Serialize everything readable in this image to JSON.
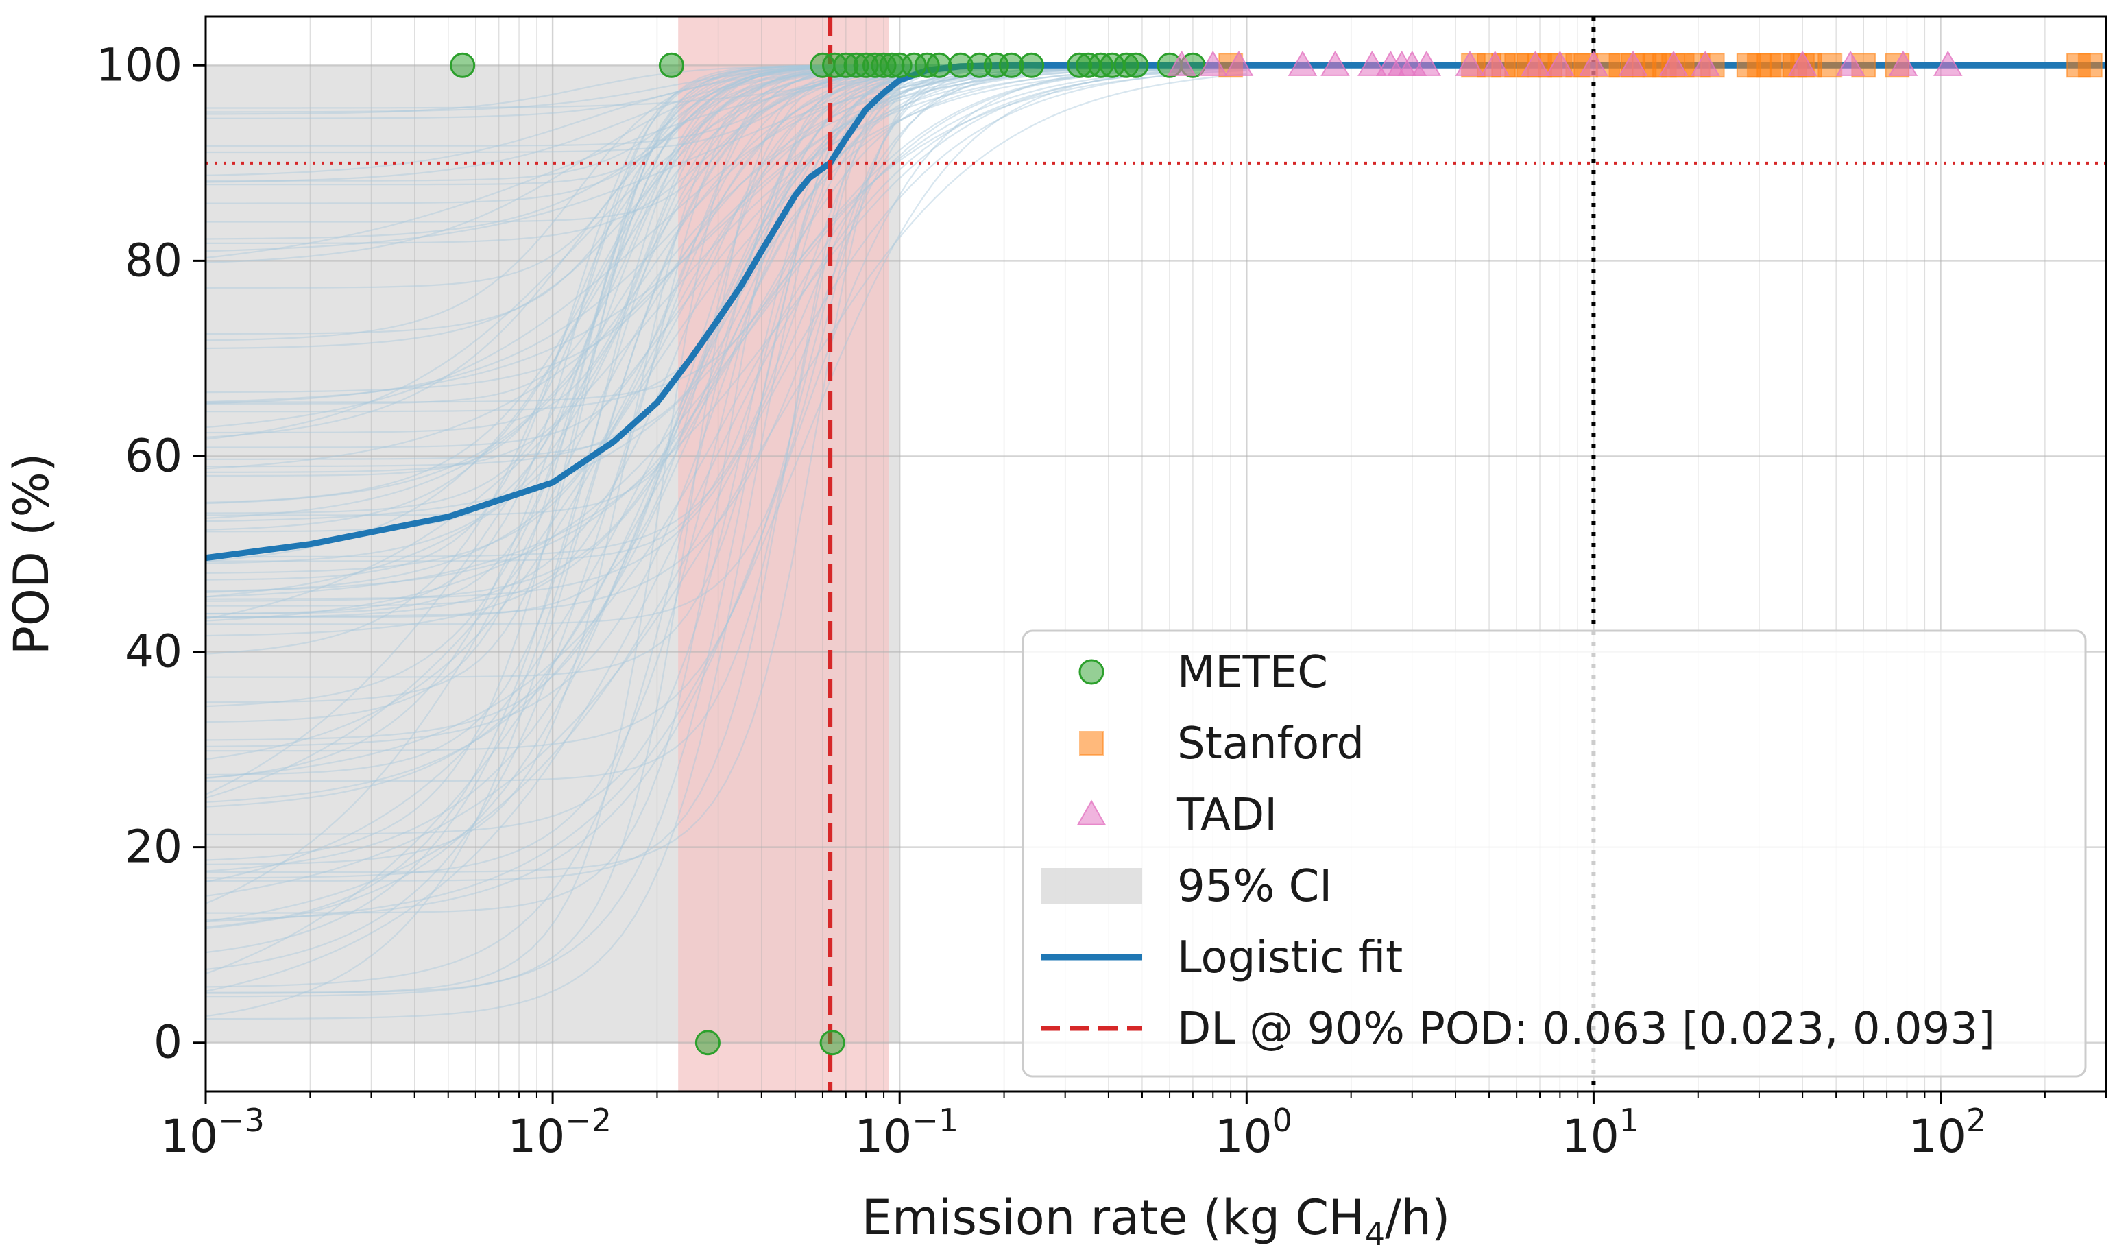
{
  "chart_data": {
    "type": "scatter",
    "title": "",
    "xlabel": {
      "prefix": "Emission rate (kg CH",
      "sub": "4",
      "suffix": "/h)"
    },
    "ylabel": "POD (%)",
    "xscale": "log",
    "xlim": [
      0.001,
      300
    ],
    "ylim": [
      -5,
      105
    ],
    "grid": true,
    "legend_position": "lower-right",
    "x_ticks": [
      {
        "value": 0.001,
        "base": "10",
        "exp": "−3"
      },
      {
        "value": 0.01,
        "base": "10",
        "exp": "−2"
      },
      {
        "value": 0.1,
        "base": "10",
        "exp": "−1"
      },
      {
        "value": 1,
        "base": "10",
        "exp": "0"
      },
      {
        "value": 10,
        "base": "10",
        "exp": "1"
      },
      {
        "value": 100,
        "base": "10",
        "exp": "2"
      }
    ],
    "y_ticks": [
      {
        "value": 0,
        "label": "0"
      },
      {
        "value": 20,
        "label": "20"
      },
      {
        "value": 40,
        "label": "40"
      },
      {
        "value": 60,
        "label": "60"
      },
      {
        "value": 80,
        "label": "80"
      },
      {
        "value": 100,
        "label": "100"
      }
    ],
    "reference_lines": {
      "pod_90": {
        "y": 90,
        "color": "#d62728",
        "style": "dotted"
      },
      "x_10": {
        "x": 10,
        "color": "#000000",
        "style": "dotted"
      }
    },
    "detection_limit": {
      "value": 0.063,
      "ci_low": 0.023,
      "ci_high": 0.093,
      "color": "#d62728",
      "band_color": "#f4c6c6"
    },
    "logistic_fit": {
      "color": "#1f77b4",
      "points": [
        [
          0.001,
          49.6
        ],
        [
          0.002,
          51.0
        ],
        [
          0.005,
          53.8
        ],
        [
          0.01,
          57.3
        ],
        [
          0.015,
          61.5
        ],
        [
          0.02,
          65.5
        ],
        [
          0.025,
          70.0
        ],
        [
          0.03,
          74.0
        ],
        [
          0.035,
          77.5
        ],
        [
          0.04,
          81.0
        ],
        [
          0.045,
          84.0
        ],
        [
          0.05,
          86.7
        ],
        [
          0.055,
          88.5
        ],
        [
          0.063,
          90.0
        ],
        [
          0.07,
          92.5
        ],
        [
          0.08,
          95.5
        ],
        [
          0.09,
          97.2
        ],
        [
          0.1,
          98.5
        ],
        [
          0.12,
          99.5
        ],
        [
          0.15,
          99.9
        ],
        [
          0.2,
          100
        ],
        [
          300,
          100
        ]
      ]
    },
    "ci_band": {
      "color": "#d9d9d9",
      "upper": 100,
      "lower": 0
    },
    "bootstrap_curves_color": "#a8c8dc",
    "series": [
      {
        "name": "METEC",
        "marker": "circle",
        "color": "#2ca02c",
        "points": [
          [
            0.0055,
            100
          ],
          [
            0.022,
            100
          ],
          [
            0.06,
            100
          ],
          [
            0.065,
            100
          ],
          [
            0.07,
            100
          ],
          [
            0.075,
            100
          ],
          [
            0.08,
            100
          ],
          [
            0.085,
            100
          ],
          [
            0.09,
            100
          ],
          [
            0.095,
            100
          ],
          [
            0.1,
            100
          ],
          [
            0.11,
            100
          ],
          [
            0.12,
            100
          ],
          [
            0.13,
            100
          ],
          [
            0.15,
            100
          ],
          [
            0.17,
            100
          ],
          [
            0.19,
            100
          ],
          [
            0.21,
            100
          ],
          [
            0.24,
            100
          ],
          [
            0.33,
            100
          ],
          [
            0.35,
            100
          ],
          [
            0.38,
            100
          ],
          [
            0.41,
            100
          ],
          [
            0.45,
            100
          ],
          [
            0.48,
            100
          ],
          [
            0.6,
            100
          ],
          [
            0.7,
            100
          ],
          [
            0.028,
            0
          ],
          [
            0.064,
            0
          ]
        ]
      },
      {
        "name": "Stanford",
        "marker": "square",
        "color": "#ff7f0e",
        "points": [
          [
            0.9,
            100
          ],
          [
            4.5,
            100
          ],
          [
            5,
            100
          ],
          [
            5.5,
            100
          ],
          [
            6,
            100
          ],
          [
            6.5,
            100
          ],
          [
            7,
            100
          ],
          [
            7.5,
            100
          ],
          [
            8,
            100
          ],
          [
            9,
            100
          ],
          [
            9.5,
            100
          ],
          [
            11,
            100
          ],
          [
            12,
            100
          ],
          [
            13,
            100
          ],
          [
            14,
            100
          ],
          [
            15,
            100
          ],
          [
            16,
            100
          ],
          [
            17,
            100
          ],
          [
            18,
            100
          ],
          [
            20,
            100
          ],
          [
            22,
            100
          ],
          [
            28,
            100
          ],
          [
            30,
            100
          ],
          [
            32,
            100
          ],
          [
            35,
            100
          ],
          [
            38,
            100
          ],
          [
            40,
            100
          ],
          [
            42,
            100
          ],
          [
            48,
            100
          ],
          [
            60,
            100
          ],
          [
            75,
            100
          ],
          [
            250,
            100
          ],
          [
            270,
            100
          ]
        ]
      },
      {
        "name": "TADI",
        "marker": "triangle",
        "color": "#e377c2",
        "points": [
          [
            0.65,
            100
          ],
          [
            0.8,
            100
          ],
          [
            0.95,
            100
          ],
          [
            1.45,
            100
          ],
          [
            1.8,
            100
          ],
          [
            2.3,
            100
          ],
          [
            2.6,
            100
          ],
          [
            2.8,
            100
          ],
          [
            3.0,
            100
          ],
          [
            3.3,
            100
          ],
          [
            4.4,
            100
          ],
          [
            5.2,
            100
          ],
          [
            6.8,
            100
          ],
          [
            8,
            100
          ],
          [
            10,
            100
          ],
          [
            13,
            100
          ],
          [
            17,
            100
          ],
          [
            21,
            100
          ],
          [
            40,
            100
          ],
          [
            55,
            100
          ],
          [
            78,
            100
          ],
          [
            105,
            100
          ]
        ]
      }
    ],
    "legend": [
      {
        "label": "METEC",
        "kind": "circle",
        "color": "#2ca02c"
      },
      {
        "label": "Stanford",
        "kind": "square",
        "color": "#ff7f0e"
      },
      {
        "label": "TADI",
        "kind": "triangle",
        "color": "#e377c2"
      },
      {
        "label": "95% CI",
        "kind": "band",
        "color": "#d9d9d9"
      },
      {
        "label": "Logistic fit",
        "kind": "solid",
        "color": "#1f77b4"
      },
      {
        "label": "DL @ 90% POD: 0.063 [0.023, 0.093]",
        "kind": "dashed",
        "color": "#d62728"
      }
    ]
  }
}
